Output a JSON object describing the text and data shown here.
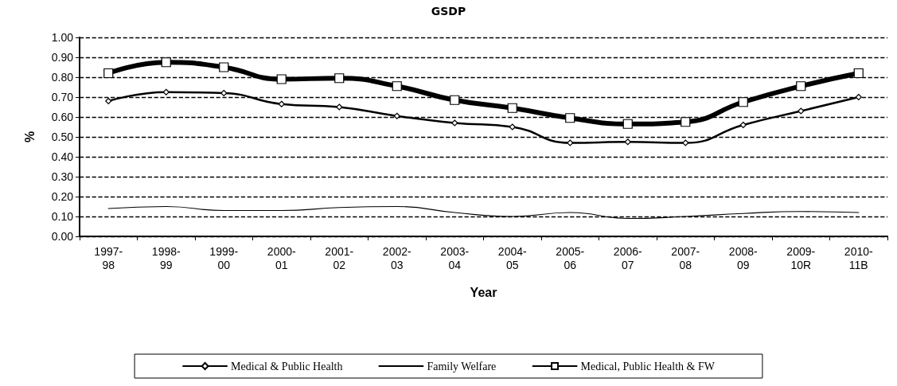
{
  "chart_data": {
    "type": "line",
    "title": "GSDP",
    "xlabel": "Year",
    "ylabel": "%",
    "categories": [
      "1997-\n98",
      "1998-\n99",
      "1999-\n00",
      "2000-\n01",
      "2001-\n02",
      "2002-\n03",
      "2003-\n04",
      "2004-\n05",
      "2005-\n06",
      "2006-\n07",
      "2007-\n08",
      "2008-\n09",
      "2009-\n10R",
      "2010-\n11B"
    ],
    "series": [
      {
        "name": "Medical & Public Health",
        "color": "#000000",
        "marker": "diamond",
        "values": [
          0.68,
          0.725,
          0.72,
          0.665,
          0.65,
          0.605,
          0.57,
          0.55,
          0.47,
          0.475,
          0.47,
          0.56,
          0.63,
          0.7
        ]
      },
      {
        "name": "Family Welfare",
        "color": "#000000",
        "marker": "none",
        "values": [
          0.14,
          0.15,
          0.13,
          0.13,
          0.145,
          0.15,
          0.12,
          0.1,
          0.12,
          0.09,
          0.1,
          0.115,
          0.125,
          0.12
        ]
      },
      {
        "name": "Medical, Public Health & FW",
        "color": "#000000",
        "marker": "square",
        "values": [
          0.82,
          0.875,
          0.85,
          0.79,
          0.795,
          0.755,
          0.685,
          0.645,
          0.595,
          0.565,
          0.575,
          0.675,
          0.755,
          0.82
        ]
      }
    ],
    "ylim": [
      0,
      1
    ],
    "yticks": [
      {
        "value": 0,
        "label": "0.00"
      },
      {
        "value": 0.1,
        "label": "0.10"
      },
      {
        "value": 0.2,
        "label": "0.20"
      },
      {
        "value": 0.3,
        "label": "0.30"
      },
      {
        "value": 0.4,
        "label": "0.40"
      },
      {
        "value": 0.5,
        "label": "0.50"
      },
      {
        "value": 0.6,
        "label": "0.60"
      },
      {
        "value": 0.7,
        "label": "0.70"
      },
      {
        "value": 0.8,
        "label": "0.80"
      },
      {
        "value": 0.9,
        "label": "0.90"
      },
      {
        "value": 1,
        "label": "1.00"
      }
    ],
    "grid": "y",
    "line_style": "solid",
    "legend": "bottom"
  }
}
